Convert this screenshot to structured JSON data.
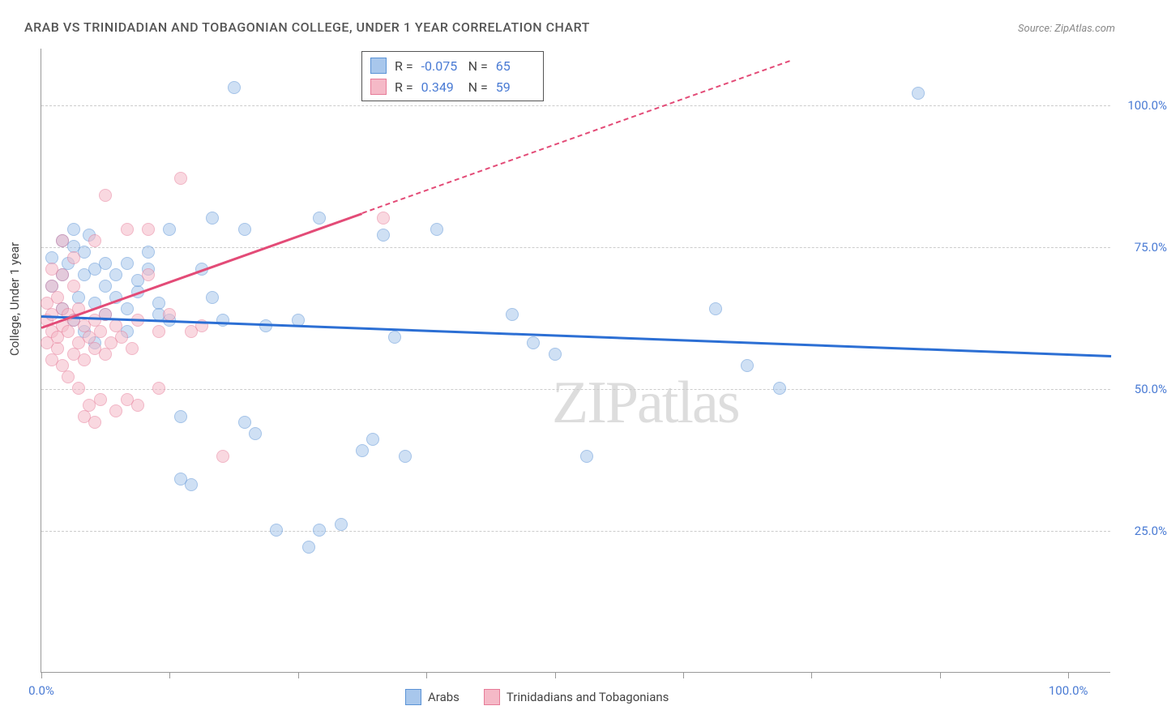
{
  "title": "ARAB VS TRINIDADIAN AND TOBAGONIAN COLLEGE, UNDER 1 YEAR CORRELATION CHART",
  "source": "Source: ZipAtlas.com",
  "y_axis_label": "College, Under 1 year",
  "watermark": "ZIPatlas",
  "chart": {
    "type": "scatter",
    "xlim": [
      0,
      100
    ],
    "ylim": [
      0,
      110
    ],
    "x_ticks": [
      0,
      12,
      24,
      36,
      48,
      60,
      72,
      84,
      96
    ],
    "x_tick_labels": {
      "0": "0.0%",
      "96": "100.0%"
    },
    "y_grid": [
      25,
      50,
      75,
      100
    ],
    "y_tick_labels": {
      "25": "25.0%",
      "50": "50.0%",
      "75": "75.0%",
      "100": "100.0%"
    },
    "background_color": "#ffffff",
    "grid_color": "#cccccc",
    "marker_radius": 8,
    "marker_opacity": 0.55,
    "series": [
      {
        "name": "Arabs",
        "color_fill": "#a8c7ec",
        "color_stroke": "#5b93d6",
        "r": "-0.075",
        "n": "65",
        "trend": {
          "x1": 0,
          "y1": 63,
          "x2": 100,
          "y2": 56,
          "color": "#2c6fd4",
          "dash_after_x": null
        },
        "points": [
          [
            1,
            73
          ],
          [
            1,
            68
          ],
          [
            2,
            76
          ],
          [
            2,
            64
          ],
          [
            2,
            70
          ],
          [
            2.5,
            72
          ],
          [
            3,
            78
          ],
          [
            3,
            62
          ],
          [
            3,
            75
          ],
          [
            3.5,
            66
          ],
          [
            4,
            74
          ],
          [
            4,
            70
          ],
          [
            4,
            60
          ],
          [
            4.5,
            77
          ],
          [
            5,
            65
          ],
          [
            5,
            71
          ],
          [
            5,
            58
          ],
          [
            6,
            72
          ],
          [
            6,
            68
          ],
          [
            6,
            63
          ],
          [
            7,
            70
          ],
          [
            7,
            66
          ],
          [
            8,
            72
          ],
          [
            8,
            60
          ],
          [
            8,
            64
          ],
          [
            9,
            67
          ],
          [
            9,
            69
          ],
          [
            10,
            71
          ],
          [
            10,
            74
          ],
          [
            11,
            65
          ],
          [
            11,
            63
          ],
          [
            12,
            62
          ],
          [
            12,
            78
          ],
          [
            13,
            45
          ],
          [
            13,
            34
          ],
          [
            14,
            33
          ],
          [
            15,
            71
          ],
          [
            16,
            80
          ],
          [
            16,
            66
          ],
          [
            17,
            62
          ],
          [
            18,
            103
          ],
          [
            19,
            78
          ],
          [
            19,
            44
          ],
          [
            20,
            42
          ],
          [
            21,
            61
          ],
          [
            22,
            25
          ],
          [
            24,
            62
          ],
          [
            25,
            22
          ],
          [
            26,
            25
          ],
          [
            26,
            80
          ],
          [
            28,
            26
          ],
          [
            30,
            39
          ],
          [
            31,
            41
          ],
          [
            32,
            77
          ],
          [
            33,
            59
          ],
          [
            34,
            38
          ],
          [
            37,
            78
          ],
          [
            44,
            63
          ],
          [
            46,
            58
          ],
          [
            48,
            56
          ],
          [
            51,
            38
          ],
          [
            63,
            64
          ],
          [
            66,
            54
          ],
          [
            69,
            50
          ],
          [
            82,
            102
          ]
        ]
      },
      {
        "name": "Trinidadians and Tobagonians",
        "color_fill": "#f5b9c7",
        "color_stroke": "#e77b98",
        "r": "0.349",
        "n": "59",
        "trend": {
          "x1": 0,
          "y1": 61,
          "x2": 70,
          "y2": 108,
          "color": "#e34b77",
          "dash_after_x": 30
        },
        "points": [
          [
            0.5,
            62
          ],
          [
            0.5,
            58
          ],
          [
            0.5,
            65
          ],
          [
            1,
            60
          ],
          [
            1,
            55
          ],
          [
            1,
            68
          ],
          [
            1,
            63
          ],
          [
            1,
            71
          ],
          [
            1.5,
            57
          ],
          [
            1.5,
            59
          ],
          [
            1.5,
            66
          ],
          [
            2,
            64
          ],
          [
            2,
            54
          ],
          [
            2,
            61
          ],
          [
            2,
            70
          ],
          [
            2,
            76
          ],
          [
            2.5,
            52
          ],
          [
            2.5,
            60
          ],
          [
            2.5,
            63
          ],
          [
            3,
            56
          ],
          [
            3,
            62
          ],
          [
            3,
            68
          ],
          [
            3,
            73
          ],
          [
            3.5,
            58
          ],
          [
            3.5,
            50
          ],
          [
            3.5,
            64
          ],
          [
            4,
            55
          ],
          [
            4,
            61
          ],
          [
            4,
            45
          ],
          [
            4.5,
            59
          ],
          [
            4.5,
            47
          ],
          [
            5,
            57
          ],
          [
            5,
            62
          ],
          [
            5,
            76
          ],
          [
            5,
            44
          ],
          [
            5.5,
            60
          ],
          [
            5.5,
            48
          ],
          [
            6,
            56
          ],
          [
            6,
            63
          ],
          [
            6,
            84
          ],
          [
            6.5,
            58
          ],
          [
            7,
            61
          ],
          [
            7,
            46
          ],
          [
            7.5,
            59
          ],
          [
            8,
            48
          ],
          [
            8,
            78
          ],
          [
            8.5,
            57
          ],
          [
            9,
            62
          ],
          [
            9,
            47
          ],
          [
            10,
            70
          ],
          [
            10,
            78
          ],
          [
            11,
            60
          ],
          [
            11,
            50
          ],
          [
            12,
            63
          ],
          [
            13,
            87
          ],
          [
            14,
            60
          ],
          [
            15,
            61
          ],
          [
            17,
            38
          ],
          [
            32,
            80
          ]
        ]
      }
    ]
  },
  "stats_legend": {
    "rows": [
      {
        "swatch_fill": "#a8c7ec",
        "swatch_stroke": "#5b93d6",
        "r": "-0.075",
        "n": "65"
      },
      {
        "swatch_fill": "#f5b9c7",
        "swatch_stroke": "#e77b98",
        "r": "0.349",
        "n": "59"
      }
    ]
  },
  "bottom_legend": {
    "items": [
      {
        "label": "Arabs",
        "swatch_fill": "#a8c7ec",
        "swatch_stroke": "#5b93d6"
      },
      {
        "label": "Trinidadians and Tobagonians",
        "swatch_fill": "#f5b9c7",
        "swatch_stroke": "#e77b98"
      }
    ]
  }
}
